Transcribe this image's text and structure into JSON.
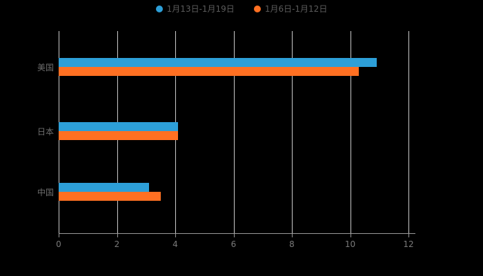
{
  "legend": {
    "items": [
      {
        "label": "1月13日-1月19日",
        "color": "#2D9FD8"
      },
      {
        "label": "1月6日-1月12日",
        "color": "#FF7022"
      }
    ]
  },
  "chart_data": {
    "type": "bar",
    "orientation": "horizontal",
    "title": "",
    "categories": [
      "美国",
      "日本",
      "中国"
    ],
    "series": [
      {
        "name": "1月13日-1月19日",
        "color": "#2D9FD8",
        "values": [
          10.9,
          4.1,
          3.1
        ]
      },
      {
        "name": "1月6日-1月12日",
        "color": "#FF7022",
        "values": [
          10.3,
          4.1,
          3.5
        ]
      }
    ],
    "xlim": [
      0,
      12
    ],
    "x_ticks": [
      0,
      2,
      4,
      6,
      8,
      10,
      12
    ],
    "grid": true,
    "legend_position": "top",
    "style": {
      "background": "#000000",
      "grid_color": "#cccccc",
      "axis_color": "#9a9a9a",
      "tick_label_color": "#7a7a7a",
      "category_label_color": "#6e6e6e",
      "legend_text_color": "#5c5c5c"
    }
  }
}
